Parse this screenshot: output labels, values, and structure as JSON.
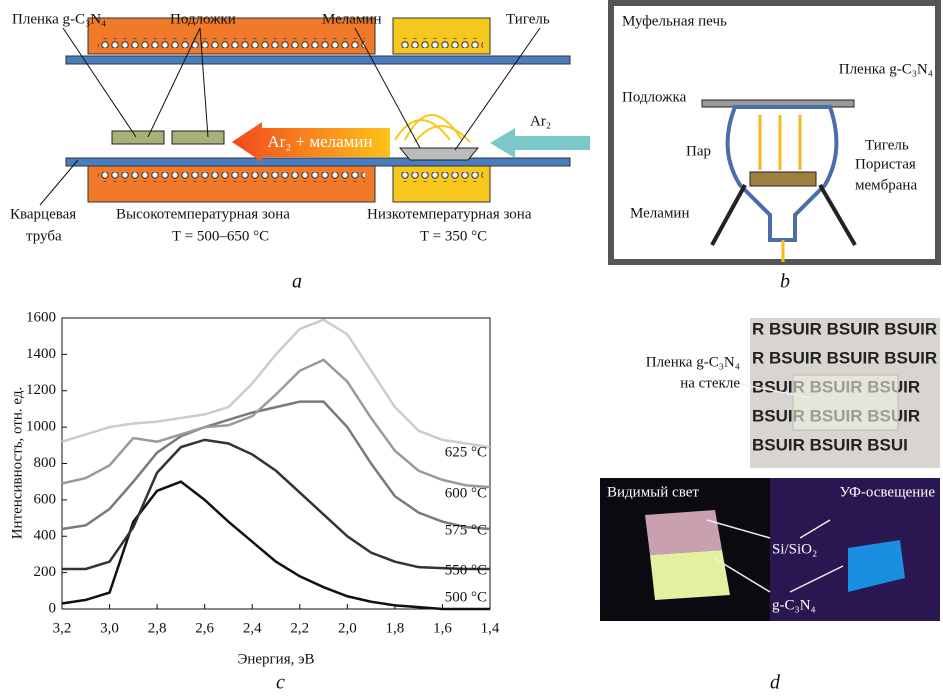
{
  "panel_a": {
    "film": "Пленка g-C₃N₄",
    "substrates": "Подложки",
    "melamine": "Меламин",
    "crucible": "Тигель",
    "flow": "Ar₂ + меламин",
    "gas": "Ar₂",
    "tube_1": "Кварцевая",
    "tube_2": "труба",
    "hot_zone": "Высокотемпературная зона",
    "hot_temp": "T = 500–650 °C",
    "cold_zone": "Низкотемпературная зона",
    "cold_temp": "T = 350 °C",
    "letter": "a"
  },
  "panel_b": {
    "title": "Муфельная печь",
    "film": "Пленка g-C₃N₄",
    "substrate": "Подложка",
    "crucible": "Тигель",
    "vapor": "Пар",
    "membrane_1": "Пористая",
    "membrane_2": "мембрана",
    "melamine": "Меламин",
    "letter": "b"
  },
  "chart_data": {
    "type": "line",
    "xlabel": "Энергия, эВ",
    "ylabel": "Интенсивность, отн. ед.",
    "panel_letter": "c",
    "x": [
      3.2,
      3.1,
      3.0,
      2.9,
      2.8,
      2.7,
      2.6,
      2.5,
      2.4,
      2.3,
      2.2,
      2.1,
      2.0,
      1.9,
      1.8,
      1.7,
      1.6,
      1.5,
      1.4
    ],
    "xlim": [
      3.2,
      1.4
    ],
    "xticks": [
      {
        "value": 3.2,
        "label": "3,2"
      },
      {
        "value": 3.0,
        "label": "3,0"
      },
      {
        "value": 2.8,
        "label": "2,8"
      },
      {
        "value": 2.6,
        "label": "2,6"
      },
      {
        "value": 2.4,
        "label": "2,4"
      },
      {
        "value": 2.2,
        "label": "2,2"
      },
      {
        "value": 2.0,
        "label": "2,0"
      },
      {
        "value": 1.8,
        "label": "1,8"
      },
      {
        "value": 1.6,
        "label": "1,6"
      },
      {
        "value": 1.4,
        "label": "1,4"
      }
    ],
    "ylim": [
      0,
      1600
    ],
    "yticks": [
      0,
      200,
      400,
      600,
      800,
      1000,
      1200,
      1400,
      1600
    ],
    "grid": false,
    "series": [
      {
        "name": "500 °C",
        "color": "#111111",
        "values": [
          30,
          50,
          90,
          480,
          650,
          700,
          600,
          480,
          370,
          260,
          180,
          120,
          70,
          40,
          20,
          10,
          0,
          0,
          0
        ]
      },
      {
        "name": "550 °C",
        "color": "#333333",
        "values": [
          220,
          220,
          260,
          450,
          750,
          890,
          930,
          910,
          850,
          760,
          640,
          520,
          400,
          310,
          260,
          230,
          225,
          220,
          220
        ]
      },
      {
        "name": "575 °C",
        "color": "#7a7a7a",
        "values": [
          440,
          460,
          550,
          700,
          860,
          950,
          1000,
          1040,
          1080,
          1110,
          1140,
          1140,
          1000,
          800,
          620,
          530,
          480,
          450,
          440
        ]
      },
      {
        "name": "600 °C",
        "color": "#9a9a9a",
        "values": [
          690,
          720,
          790,
          940,
          920,
          960,
          1000,
          1010,
          1060,
          1180,
          1310,
          1370,
          1250,
          1050,
          870,
          760,
          710,
          680,
          670
        ]
      },
      {
        "name": "625 °C",
        "color": "#cccccc",
        "values": [
          920,
          960,
          1000,
          1020,
          1030,
          1050,
          1070,
          1110,
          1240,
          1400,
          1540,
          1590,
          1510,
          1310,
          1110,
          980,
          930,
          910,
          890
        ]
      }
    ]
  },
  "panel_d": {
    "film_1": "Пленка g-C₃N₄",
    "film_2": "на стекле",
    "photo_rows": [
      "R BSUIR BSUIR BSUIR",
      "R BSUIR BSUIR BSUIR",
      "BSUIR BSUIR BSUIR",
      "BSUIR BSUIR BSUIR",
      "BSUIR BSUIR BSUI"
    ],
    "visible": "Видимый свет",
    "uv": "УФ-освещение",
    "si": "Si/SiO₂",
    "gcn": "g-C₃N₄",
    "letter": "d"
  }
}
